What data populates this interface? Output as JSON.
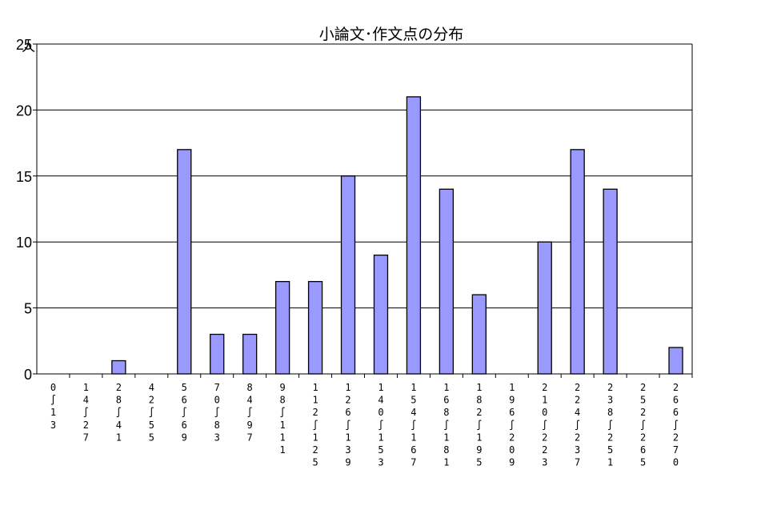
{
  "chart_data": {
    "type": "bar",
    "title": "小論文･作文点の分布",
    "ylabel": "人",
    "ylim": [
      0,
      25
    ],
    "yticks": [
      0,
      5,
      10,
      15,
      20,
      25
    ],
    "grid": true,
    "bar_color": "#9999ff",
    "range_separator": "∫",
    "categories": [
      "0∫13",
      "14∫27",
      "28∫41",
      "42∫55",
      "56∫69",
      "70∫83",
      "84∫97",
      "98∫111",
      "112∫125",
      "126∫139",
      "140∫153",
      "154∫167",
      "168∫181",
      "182∫195",
      "196∫209",
      "210∫223",
      "224∫237",
      "238∫251",
      "252∫265",
      "266∫270"
    ],
    "values": [
      0,
      0,
      1,
      0,
      17,
      3,
      3,
      7,
      7,
      15,
      9,
      21,
      14,
      6,
      0,
      10,
      17,
      14,
      0,
      2
    ]
  }
}
